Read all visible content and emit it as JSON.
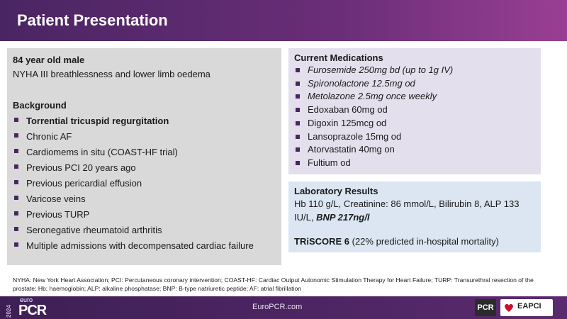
{
  "header": {
    "title": "Patient Presentation"
  },
  "patient": {
    "summary": "84 year old male",
    "complaint": "NYHA III breathlessness and lower limb oedema",
    "background_title": "Background",
    "background": [
      "Torrential tricuspid regurgitation",
      "Chronic AF",
      "Cardiomems in situ (COAST-HF trial)",
      "Previous PCI 20 years ago",
      "Previous pericardial effusion",
      "Varicose veins",
      "Previous TURP",
      "Seronegative rheumatoid arthritis",
      "Multiple admissions with decompensated cardiac failure"
    ]
  },
  "medications": {
    "title": "Current Medications",
    "items": [
      "Furosemide 250mg bd (up to 1g IV)",
      "Spironolactone 12.5mg od",
      "Metolazone 2.5mg once weekly",
      "Edoxaban 60mg od",
      "Digoxin 125mcg od",
      "Lansoprazole 15mg od",
      "Atorvastatin 40mg on",
      "Fultium od"
    ]
  },
  "laboratory": {
    "title": "Laboratory Results",
    "results": "Hb 110 g/L, Creatinine: 86 mmol/L, Bilirubin 8, ALP 133 IU/L, ",
    "bnp": "BNP 217ng/l",
    "triscore": "TRiSCORE 6",
    "triscore_note": " (22% predicted in-hospital mortality)"
  },
  "footnote": "NYHA: New York Heart Association; PCI: Percutaneous coronary intervention; COAST-HF: Cardiac Output Autonomic Stimulation Therapy for Heart Failure; TURP: Transurethral resection of the prostate; Hb; haemoglobin; ALP: alkaline phosphatase; BNP: B-type natriuretic peptide; AF: atrial fibrillation",
  "footer": {
    "year": "2024",
    "brand_top": "euro",
    "brand": "PCR",
    "url": "EuroPCR.com",
    "badge_pcr": "PCR",
    "badge_eapci": "EAPCI"
  }
}
